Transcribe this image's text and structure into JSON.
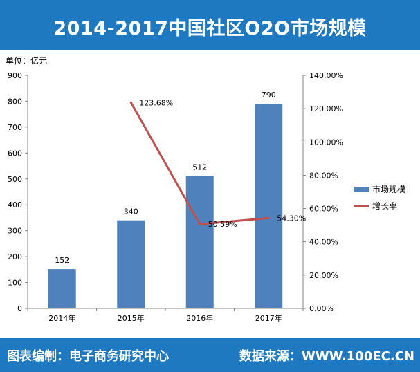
{
  "header": {
    "title": "2014-2017中国社区O2O市场规模"
  },
  "footer": {
    "source_left": "图表编制：电子商务研究中心",
    "source_right": "数据来源：WWW.100EC.CN"
  },
  "colors": {
    "banner": "#1f79c0",
    "bar": "#4f81bd",
    "line": "#c0504d",
    "axis": "#868686"
  },
  "chart_data": {
    "type": "bar",
    "unit_label": "单位：亿元",
    "categories": [
      "2014年",
      "2015年",
      "2016年",
      "2017年"
    ],
    "series": [
      {
        "name": "市场规模",
        "type": "bar",
        "axis": "left",
        "values": [
          152,
          340,
          512,
          790
        ],
        "labels": [
          "152",
          "340",
          "512",
          "790"
        ]
      },
      {
        "name": "增长率",
        "type": "line",
        "axis": "right",
        "values": [
          null,
          123.68,
          50.59,
          54.3
        ],
        "labels": [
          "",
          "123.68%",
          "50.59%",
          "54.30%"
        ]
      }
    ],
    "ylim": [
      0,
      900
    ],
    "y_ticks": [
      "0",
      "100",
      "200",
      "300",
      "400",
      "500",
      "600",
      "700",
      "800",
      "900"
    ],
    "y2lim": [
      0,
      140
    ],
    "y2_ticks": [
      "0.00%",
      "20.00%",
      "40.00%",
      "60.00%",
      "80.00%",
      "100.00%",
      "120.00%",
      "140.00%"
    ],
    "grid": false,
    "legend_position": "right"
  }
}
